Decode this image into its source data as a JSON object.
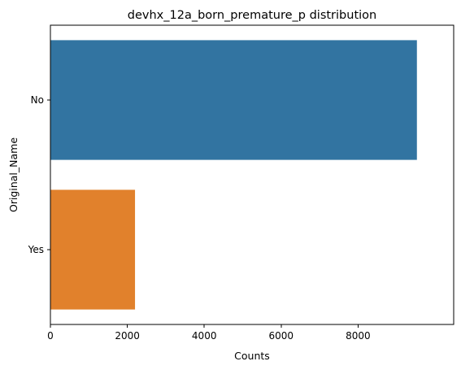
{
  "chart_data": {
    "type": "bar",
    "orientation": "horizontal",
    "title": "devhx_12a_born_premature_p distribution",
    "xlabel": "Counts",
    "ylabel": "Original_Name",
    "categories": [
      "No",
      "Yes"
    ],
    "values": [
      9530,
      2200
    ],
    "colors": [
      "#3274a1",
      "#e1812c"
    ],
    "xlim": [
      0,
      10000
    ],
    "xticks": [
      0,
      2000,
      4000,
      6000,
      8000
    ],
    "grid": false,
    "legend": "none"
  }
}
